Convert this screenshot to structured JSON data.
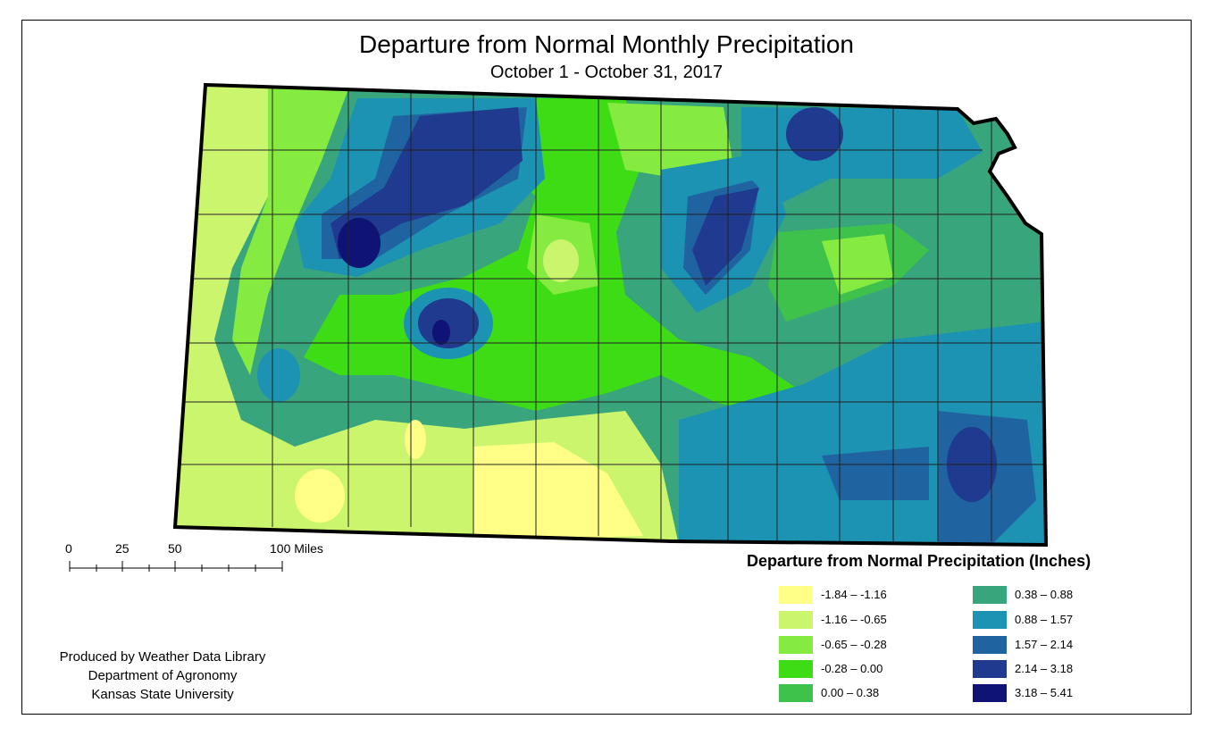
{
  "title": "Departure from Normal Monthly Precipitation",
  "subtitle": "October 1 - October 31, 2017",
  "scale_bar": {
    "labels": [
      "0",
      "25",
      "50",
      "100 Miles"
    ]
  },
  "credits": {
    "line1": "Produced by Weather Data Library",
    "line2": "Department of Agronomy",
    "line3": "Kansas State University"
  },
  "legend": {
    "title": "Departure from Normal Precipitation (Inches)",
    "items": [
      {
        "label": "-1.84 – -1.16",
        "color": "#ffff88"
      },
      {
        "label": "-1.16 – -0.65",
        "color": "#ccf56e"
      },
      {
        "label": "-0.65 – -0.28",
        "color": "#86eb40"
      },
      {
        "label": "-0.28 – 0.00",
        "color": "#3edc14"
      },
      {
        "label": "0.00 – 0.38",
        "color": "#3fc24c"
      },
      {
        "label": "0.38 – 0.88",
        "color": "#38a57d"
      },
      {
        "label": "0.88 – 1.57",
        "color": "#1d93b3"
      },
      {
        "label": "1.57 – 2.14",
        "color": "#1f64a0"
      },
      {
        "label": "2.14 – 3.18",
        "color": "#1f3a8e"
      },
      {
        "label": "3.18 – 5.41",
        "color": "#0e1374"
      }
    ]
  }
}
